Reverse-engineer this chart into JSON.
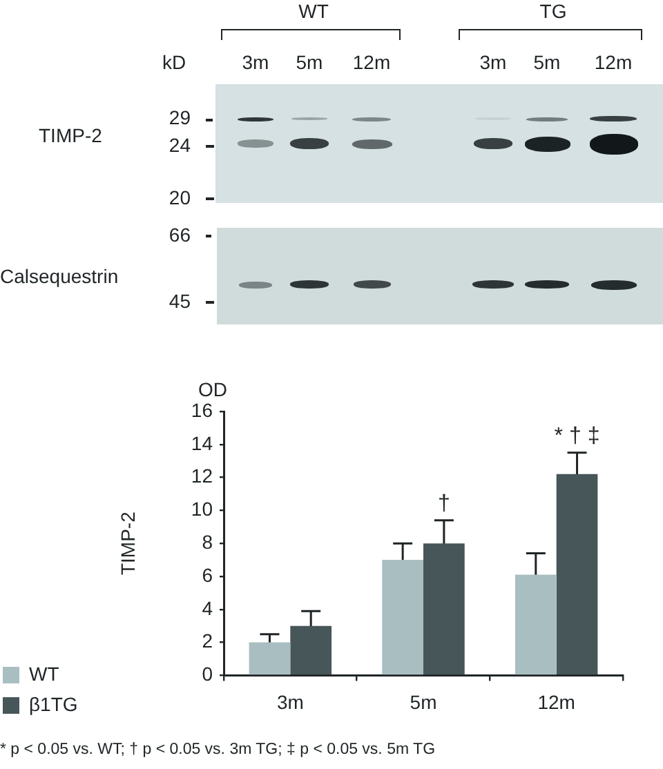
{
  "chart_data": [
    {
      "type": "other",
      "categories": [
        "3m",
        "5m",
        "12m",
        "3m",
        "5m",
        "12m"
      ],
      "annotations": [
        "WT",
        "TG",
        "kD",
        "TIMP-2",
        "Calsequestrin",
        "29",
        "24",
        "20",
        "66",
        "45"
      ]
    },
    {
      "type": "bar",
      "ylabel": "TIMP-2",
      "categories": [
        "3m",
        "5m",
        "12m"
      ],
      "series": [
        {
          "name": "WT",
          "color": "#a9bec0",
          "values": [
            2.0,
            7.0,
            6.1
          ],
          "errors": [
            0.5,
            1.0,
            1.3
          ]
        },
        {
          "name": "β1TG",
          "color": "#475658",
          "values": [
            3.0,
            8.0,
            12.2
          ],
          "errors": [
            0.9,
            1.4,
            1.3
          ]
        }
      ],
      "ylim": [
        0,
        16
      ],
      "yticks": [
        0,
        2,
        4,
        6,
        8,
        10,
        12,
        14,
        16
      ],
      "legend": "bottom left",
      "annotations": [
        "OD",
        {
          "text": "†",
          "x": "5m",
          "y": 8.0
        },
        {
          "text": "* † ‡",
          "x": "12m",
          "y": 12.2
        },
        "* p < 0.05 vs. WT; † p < 0.05 vs. 3m TG; ‡ p < 0.05 vs. 5m TG"
      ]
    }
  ]
}
